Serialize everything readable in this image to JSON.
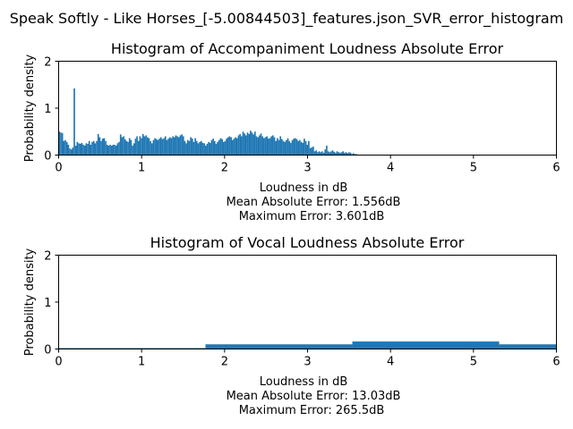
{
  "figure": {
    "suptitle": "Speak Softly - Like Horses_[-5.00844503]_features.json_SVR_error_histogram"
  },
  "colors": {
    "bar": "#1f77b4",
    "axis": "#000000",
    "background": "#ffffff"
  },
  "chart_data": [
    {
      "type": "bar",
      "title": "Histogram of Accompaniment Loudness Absolute Error",
      "xlabel": "Loudness in dB",
      "ylabel": "Probability density",
      "notes": [
        "Mean Absolute Error: 1.556dB",
        "Maximum Error: 3.601dB"
      ],
      "xlim": [
        0,
        6
      ],
      "ylim": [
        0,
        2
      ],
      "xticks": [
        "0",
        "1",
        "2",
        "3",
        "4",
        "5",
        "6"
      ],
      "yticks": [
        "0",
        "1",
        "2"
      ],
      "bin_width": 0.018,
      "x": [
        0.0,
        0.018,
        0.036,
        0.054,
        0.072,
        0.09,
        0.108,
        0.126,
        0.144,
        0.162,
        0.18,
        0.198,
        0.216,
        0.234,
        0.252,
        0.27,
        0.288,
        0.306,
        0.324,
        0.342,
        0.36,
        0.378,
        0.396,
        0.414,
        0.432,
        0.45,
        0.468,
        0.486,
        0.504,
        0.522,
        0.54,
        0.558,
        0.576,
        0.594,
        0.612,
        0.63,
        0.648,
        0.666,
        0.684,
        0.702,
        0.72,
        0.738,
        0.756,
        0.774,
        0.792,
        0.81,
        0.828,
        0.846,
        0.864,
        0.882,
        0.9,
        0.918,
        0.936,
        0.954,
        0.972,
        0.99,
        1.008,
        1.026,
        1.044,
        1.062,
        1.08,
        1.098,
        1.116,
        1.134,
        1.152,
        1.17,
        1.188,
        1.206,
        1.224,
        1.242,
        1.26,
        1.278,
        1.296,
        1.314,
        1.332,
        1.35,
        1.368,
        1.386,
        1.404,
        1.422,
        1.44,
        1.458,
        1.476,
        1.494,
        1.512,
        1.53,
        1.548,
        1.566,
        1.584,
        1.602,
        1.62,
        1.638,
        1.656,
        1.674,
        1.692,
        1.71,
        1.728,
        1.746,
        1.764,
        1.782,
        1.8,
        1.818,
        1.836,
        1.854,
        1.872,
        1.89,
        1.908,
        1.926,
        1.944,
        1.962,
        1.98,
        1.998,
        2.016,
        2.034,
        2.052,
        2.07,
        2.088,
        2.106,
        2.124,
        2.142,
        2.16,
        2.178,
        2.196,
        2.214,
        2.232,
        2.25,
        2.268,
        2.286,
        2.304,
        2.322,
        2.34,
        2.358,
        2.376,
        2.394,
        2.412,
        2.43,
        2.448,
        2.466,
        2.484,
        2.502,
        2.52,
        2.538,
        2.556,
        2.574,
        2.592,
        2.61,
        2.628,
        2.646,
        2.664,
        2.682,
        2.7,
        2.718,
        2.736,
        2.754,
        2.772,
        2.79,
        2.808,
        2.826,
        2.844,
        2.862,
        2.88,
        2.898,
        2.916,
        2.934,
        2.952,
        2.97,
        2.988,
        3.006,
        3.024,
        3.042,
        3.06,
        3.078,
        3.096,
        3.114,
        3.132,
        3.15,
        3.168,
        3.186,
        3.204,
        3.222,
        3.24,
        3.258,
        3.276,
        3.294,
        3.312,
        3.33,
        3.348,
        3.366,
        3.384,
        3.402,
        3.42,
        3.438,
        3.456,
        3.474,
        3.492,
        3.51,
        3.528,
        3.546,
        3.564,
        3.582
      ],
      "values": [
        0.5,
        0.48,
        0.47,
        0.3,
        0.32,
        0.28,
        0.22,
        0.14,
        0.12,
        0.16,
        1.42,
        0.2,
        0.28,
        0.25,
        0.24,
        0.26,
        0.22,
        0.2,
        0.25,
        0.24,
        0.3,
        0.22,
        0.28,
        0.3,
        0.25,
        0.3,
        0.45,
        0.38,
        0.3,
        0.35,
        0.36,
        0.3,
        0.22,
        0.2,
        0.22,
        0.2,
        0.22,
        0.22,
        0.2,
        0.25,
        0.28,
        0.44,
        0.38,
        0.4,
        0.34,
        0.3,
        0.28,
        0.36,
        0.32,
        0.2,
        0.25,
        0.35,
        0.4,
        0.3,
        0.4,
        0.36,
        0.45,
        0.4,
        0.42,
        0.38,
        0.36,
        0.3,
        0.25,
        0.32,
        0.36,
        0.34,
        0.32,
        0.35,
        0.38,
        0.34,
        0.36,
        0.4,
        0.32,
        0.35,
        0.38,
        0.36,
        0.4,
        0.38,
        0.42,
        0.4,
        0.38,
        0.42,
        0.44,
        0.4,
        0.3,
        0.25,
        0.32,
        0.3,
        0.38,
        0.35,
        0.28,
        0.36,
        0.3,
        0.25,
        0.28,
        0.3,
        0.26,
        0.25,
        0.2,
        0.24,
        0.28,
        0.26,
        0.32,
        0.35,
        0.3,
        0.24,
        0.28,
        0.32,
        0.36,
        0.34,
        0.28,
        0.3,
        0.35,
        0.38,
        0.4,
        0.38,
        0.32,
        0.35,
        0.38,
        0.36,
        0.42,
        0.45,
        0.4,
        0.5,
        0.46,
        0.42,
        0.48,
        0.45,
        0.52,
        0.48,
        0.44,
        0.5,
        0.4,
        0.38,
        0.42,
        0.46,
        0.4,
        0.36,
        0.38,
        0.4,
        0.35,
        0.36,
        0.4,
        0.42,
        0.38,
        0.3,
        0.36,
        0.32,
        0.4,
        0.34,
        0.3,
        0.28,
        0.32,
        0.36,
        0.3,
        0.26,
        0.32,
        0.35,
        0.36,
        0.34,
        0.3,
        0.32,
        0.28,
        0.26,
        0.35,
        0.3,
        0.22,
        0.3,
        0.15,
        0.16,
        0.18,
        0.08,
        0.1,
        0.06,
        0.08,
        0.06,
        0.08,
        0.05,
        0.12,
        0.2,
        0.08,
        0.06,
        0.08,
        0.1,
        0.07,
        0.05,
        0.08,
        0.06,
        0.05,
        0.06,
        0.08,
        0.05,
        0.06,
        0.04,
        0.06,
        0.05,
        0.02,
        0.04,
        0.02,
        0.02
      ]
    },
    {
      "type": "bar",
      "title": "Histogram of Vocal Loudness Absolute Error",
      "xlabel": "Loudness in dB",
      "ylabel": "Probability density",
      "notes": [
        "Mean Absolute Error: 13.03dB",
        "Maximum Error: 265.5dB"
      ],
      "xlim": [
        0,
        6
      ],
      "ylim": [
        0,
        2
      ],
      "xticks": [
        "0",
        "1",
        "2",
        "3",
        "4",
        "5",
        "6"
      ],
      "yticks": [
        "0",
        "1",
        "2"
      ],
      "bin_width": 1.77,
      "x": [
        0.0,
        1.77,
        3.54,
        5.31
      ],
      "values": [
        0.02,
        0.1,
        0.16,
        0.1
      ]
    }
  ]
}
